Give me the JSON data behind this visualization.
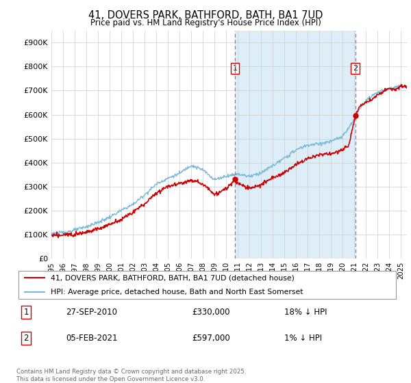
{
  "title": "41, DOVERS PARK, BATHFORD, BATH, BA1 7UD",
  "subtitle": "Price paid vs. HM Land Registry's House Price Index (HPI)",
  "footer": "Contains HM Land Registry data © Crown copyright and database right 2025.\nThis data is licensed under the Open Government Licence v3.0.",
  "legend_line1": "41, DOVERS PARK, BATHFORD, BATH, BA1 7UD (detached house)",
  "legend_line2": "HPI: Average price, detached house, Bath and North East Somerset",
  "transaction1_date": "27-SEP-2010",
  "transaction1_price": "£330,000",
  "transaction1_hpi": "18% ↓ HPI",
  "transaction2_date": "05-FEB-2021",
  "transaction2_price": "£597,000",
  "transaction2_hpi": "1% ↓ HPI",
  "hpi_color": "#7ab8d9",
  "hpi_shade": "#ddeef8",
  "price_color": "#cc0000",
  "marker_edge_color": "#cc0000",
  "dashed_color": "#cc6666",
  "ylim_min": 0,
  "ylim_max": 950000,
  "year_start": 1995,
  "year_end": 2025,
  "t1_year": 2010.75,
  "t2_year": 2021.08,
  "t1_price": 330000,
  "t2_price": 597000
}
